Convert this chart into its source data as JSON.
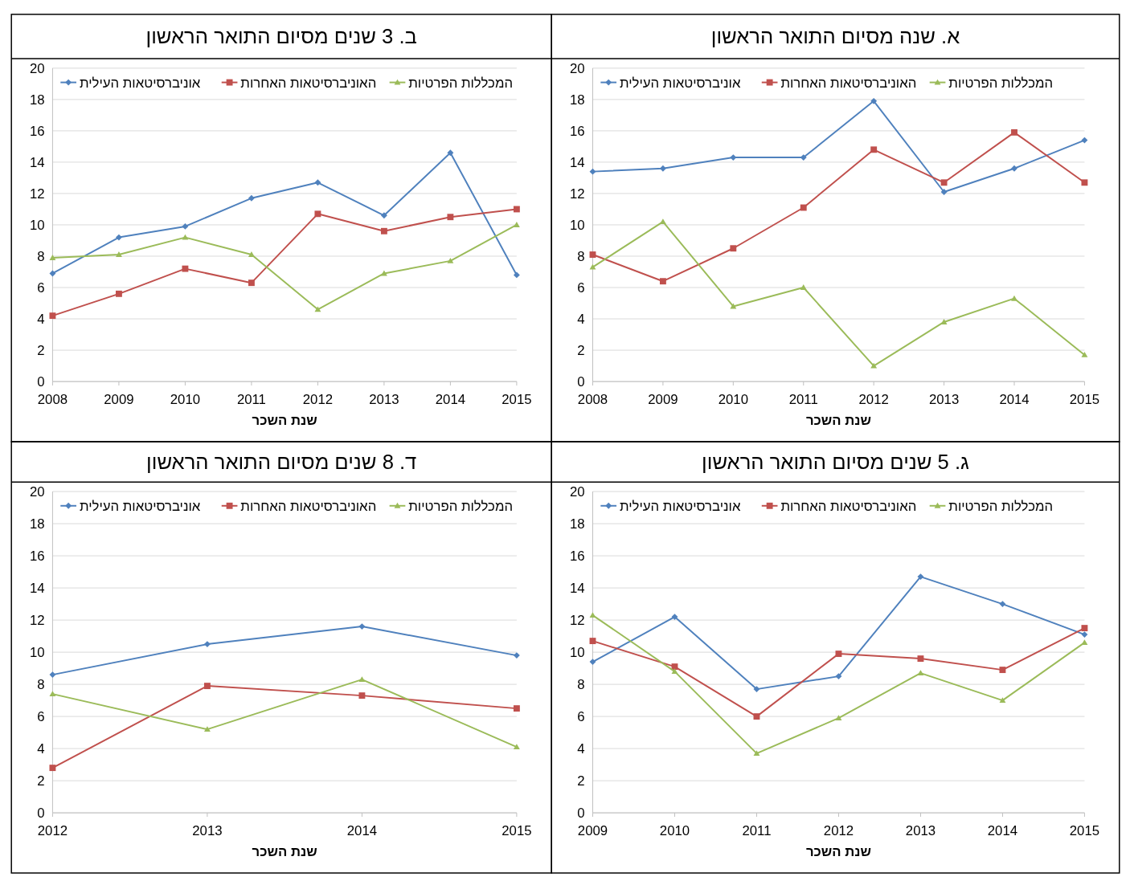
{
  "chart_data": [
    {
      "type": "line",
      "title": "א. שנה מסיום התואר הראשון",
      "xlabel": "שנת השכר",
      "categories": [
        "2008",
        "2009",
        "2010",
        "2011",
        "2012",
        "2013",
        "2014",
        "2015"
      ],
      "ylim": [
        0,
        20
      ],
      "yticks": [
        0,
        2,
        4,
        6,
        8,
        10,
        12,
        14,
        16,
        18,
        20
      ],
      "grid": "y",
      "legend": "top",
      "series": [
        {
          "name": "אוניברסיטאות העילית",
          "color": "#4f81bd",
          "marker": "diamond",
          "values": [
            13.4,
            13.6,
            14.3,
            14.3,
            17.9,
            12.1,
            13.6,
            15.4
          ]
        },
        {
          "name": "האוניברסיטאות האחרות",
          "color": "#c0504d",
          "marker": "square",
          "values": [
            8.1,
            6.4,
            8.5,
            11.1,
            14.8,
            12.7,
            15.9,
            12.7
          ]
        },
        {
          "name": "המכללות הפרטיות",
          "color": "#9bbb59",
          "marker": "triangle",
          "values": [
            7.3,
            10.2,
            4.8,
            6.0,
            1.0,
            3.8,
            5.3,
            1.7
          ]
        }
      ]
    },
    {
      "type": "line",
      "title": "ב. 3 שנים מסיום התואר הראשון",
      "xlabel": "שנת השכר",
      "categories": [
        "2008",
        "2009",
        "2010",
        "2011",
        "2012",
        "2013",
        "2014",
        "2015"
      ],
      "ylim": [
        0,
        20
      ],
      "yticks": [
        0,
        2,
        4,
        6,
        8,
        10,
        12,
        14,
        16,
        18,
        20
      ],
      "grid": "y",
      "legend": "top",
      "series": [
        {
          "name": "אוניברסיטאות העילית",
          "color": "#4f81bd",
          "marker": "diamond",
          "values": [
            6.9,
            9.2,
            9.9,
            11.7,
            12.7,
            10.6,
            14.6,
            6.8
          ]
        },
        {
          "name": "האוניברסיטאות האחרות",
          "color": "#c0504d",
          "marker": "square",
          "values": [
            4.2,
            5.6,
            7.2,
            6.3,
            10.7,
            9.6,
            10.5,
            11.0
          ]
        },
        {
          "name": "המכללות הפרטיות",
          "color": "#9bbb59",
          "marker": "triangle",
          "values": [
            7.9,
            8.1,
            9.2,
            8.1,
            4.6,
            6.9,
            7.7,
            10.0
          ]
        }
      ]
    },
    {
      "type": "line",
      "title": "ג. 5 שנים מסיום התואר הראשון",
      "xlabel": "שנת השכר",
      "categories": [
        "2009",
        "2010",
        "2011",
        "2012",
        "2013",
        "2014",
        "2015"
      ],
      "ylim": [
        0,
        20
      ],
      "yticks": [
        0,
        2,
        4,
        6,
        8,
        10,
        12,
        14,
        16,
        18,
        20
      ],
      "grid": "y",
      "legend": "top",
      "series": [
        {
          "name": "אוניברסיטאות העילית",
          "color": "#4f81bd",
          "marker": "diamond",
          "values": [
            9.4,
            12.2,
            7.7,
            8.5,
            14.7,
            13.0,
            11.1
          ]
        },
        {
          "name": "האוניברסיטאות האחרות",
          "color": "#c0504d",
          "marker": "square",
          "values": [
            10.7,
            9.1,
            6.0,
            9.9,
            9.6,
            8.9,
            11.5
          ]
        },
        {
          "name": "המכללות הפרטיות",
          "color": "#9bbb59",
          "marker": "triangle",
          "values": [
            12.3,
            8.8,
            3.7,
            5.9,
            8.7,
            7.0,
            10.6
          ]
        }
      ]
    },
    {
      "type": "line",
      "title": "ד. 8 שנים מסיום התואר הראשון",
      "xlabel": "שנת השכר",
      "categories": [
        "2012",
        "2013",
        "2014",
        "2015"
      ],
      "ylim": [
        0,
        20
      ],
      "yticks": [
        0,
        2,
        4,
        6,
        8,
        10,
        12,
        14,
        16,
        18,
        20
      ],
      "grid": "y",
      "legend": "top",
      "series": [
        {
          "name": "אוניברסיטאות העילית",
          "color": "#4f81bd",
          "marker": "diamond",
          "values": [
            8.6,
            10.5,
            11.6,
            9.8
          ]
        },
        {
          "name": "האוניברסיטאות האחרות",
          "color": "#c0504d",
          "marker": "square",
          "values": [
            2.8,
            7.9,
            7.3,
            6.5
          ]
        },
        {
          "name": "המכללות הפרטיות",
          "color": "#9bbb59",
          "marker": "triangle",
          "values": [
            7.4,
            5.2,
            8.3,
            4.1
          ]
        }
      ]
    }
  ]
}
